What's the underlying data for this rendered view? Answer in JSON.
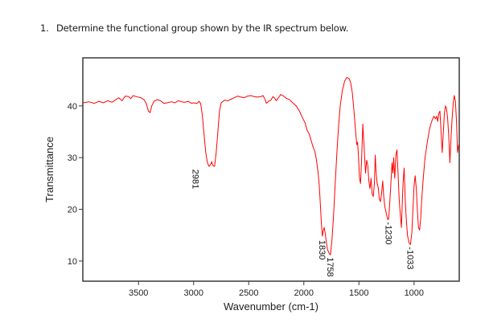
{
  "question": {
    "number": "1.",
    "text": "Determine the functional group shown by the IR spectrum below."
  },
  "chart_data": {
    "type": "line",
    "title": "",
    "xlabel": "Wavenumber (cm-1)",
    "ylabel": "Transmittance",
    "xlim": [
      4005,
      590
    ],
    "ylim": [
      6.1,
      49.3
    ],
    "x_reversed": true,
    "grid": false,
    "legend": null,
    "x_ticks": [
      3500,
      3000,
      2500,
      2000,
      1500,
      1000
    ],
    "y_ticks": [
      10,
      20,
      30,
      40
    ],
    "line_color": "#ff0000",
    "peak_labels": [
      {
        "label": "2981",
        "x": 2981,
        "y": 28.2
      },
      {
        "label": "1830",
        "x": 1830,
        "y": 14.5
      },
      {
        "label": "1758",
        "x": 1758,
        "y": 11.2
      },
      {
        "label": "-1230",
        "x": 1230,
        "y": 18.0
      },
      {
        "label": "-1033",
        "x": 1033,
        "y": 13.2
      }
    ],
    "series": [
      {
        "name": "IR spectrum",
        "points": [
          [
            4005,
            40.6
          ],
          [
            3950,
            40.8
          ],
          [
            3900,
            40.5
          ],
          [
            3860,
            40.9
          ],
          [
            3820,
            40.6
          ],
          [
            3780,
            41.0
          ],
          [
            3740,
            40.7
          ],
          [
            3700,
            41.3
          ],
          [
            3680,
            41.6
          ],
          [
            3650,
            41.0
          ],
          [
            3620,
            41.9
          ],
          [
            3590,
            41.8
          ],
          [
            3570,
            41.4
          ],
          [
            3550,
            42.0
          ],
          [
            3520,
            41.8
          ],
          [
            3480,
            41.6
          ],
          [
            3450,
            41.2
          ],
          [
            3430,
            40.5
          ],
          [
            3410,
            39.0
          ],
          [
            3395,
            38.7
          ],
          [
            3380,
            40.0
          ],
          [
            3360,
            40.9
          ],
          [
            3330,
            41.2
          ],
          [
            3300,
            41.0
          ],
          [
            3270,
            40.5
          ],
          [
            3240,
            40.6
          ],
          [
            3200,
            40.8
          ],
          [
            3170,
            40.6
          ],
          [
            3140,
            41.0
          ],
          [
            3110,
            40.8
          ],
          [
            3080,
            40.7
          ],
          [
            3050,
            40.9
          ],
          [
            3020,
            40.5
          ],
          [
            3000,
            40.6
          ],
          [
            2970,
            40.5
          ],
          [
            2950,
            40.9
          ],
          [
            2935,
            40.4
          ],
          [
            2920,
            38.0
          ],
          [
            2905,
            34.5
          ],
          [
            2890,
            31.0
          ],
          [
            2875,
            29.0
          ],
          [
            2860,
            28.3
          ],
          [
            2845,
            28.7
          ],
          [
            2835,
            29.2
          ],
          [
            2825,
            28.5
          ],
          [
            2810,
            28.3
          ],
          [
            2795,
            31.0
          ],
          [
            2780,
            35.0
          ],
          [
            2765,
            39.0
          ],
          [
            2750,
            40.6
          ],
          [
            2720,
            41.1
          ],
          [
            2690,
            41.0
          ],
          [
            2660,
            41.3
          ],
          [
            2630,
            41.6
          ],
          [
            2600,
            41.9
          ],
          [
            2570,
            41.7
          ],
          [
            2540,
            41.6
          ],
          [
            2510,
            41.9
          ],
          [
            2480,
            42.0
          ],
          [
            2450,
            41.8
          ],
          [
            2420,
            41.7
          ],
          [
            2390,
            41.8
          ],
          [
            2370,
            42.0
          ],
          [
            2355,
            41.4
          ],
          [
            2340,
            40.5
          ],
          [
            2320,
            40.9
          ],
          [
            2300,
            41.1
          ],
          [
            2280,
            41.8
          ],
          [
            2265,
            41.5
          ],
          [
            2250,
            41.0
          ],
          [
            2230,
            41.6
          ],
          [
            2210,
            42.2
          ],
          [
            2190,
            42.0
          ],
          [
            2160,
            41.5
          ],
          [
            2130,
            41.2
          ],
          [
            2100,
            40.6
          ],
          [
            2070,
            40.0
          ],
          [
            2040,
            39.0
          ],
          [
            2010,
            37.6
          ],
          [
            1990,
            36.8
          ],
          [
            1970,
            35.3
          ],
          [
            1950,
            34.5
          ],
          [
            1930,
            33.0
          ],
          [
            1915,
            32.0
          ],
          [
            1900,
            31.2
          ],
          [
            1885,
            29.5
          ],
          [
            1870,
            27.0
          ],
          [
            1860,
            24.5
          ],
          [
            1850,
            21.0
          ],
          [
            1840,
            17.0
          ],
          [
            1832,
            14.8
          ],
          [
            1825,
            15.8
          ],
          [
            1815,
            16.5
          ],
          [
            1805,
            15.2
          ],
          [
            1795,
            13.5
          ],
          [
            1785,
            12.2
          ],
          [
            1770,
            11.5
          ],
          [
            1758,
            11.2
          ],
          [
            1745,
            14.0
          ],
          [
            1730,
            19.0
          ],
          [
            1715,
            25.0
          ],
          [
            1700,
            31.0
          ],
          [
            1685,
            36.0
          ],
          [
            1670,
            40.0
          ],
          [
            1650,
            43.0
          ],
          [
            1630,
            44.8
          ],
          [
            1610,
            45.5
          ],
          [
            1590,
            45.3
          ],
          [
            1575,
            44.5
          ],
          [
            1560,
            42.5
          ],
          [
            1545,
            39.0
          ],
          [
            1530,
            35.0
          ],
          [
            1520,
            32.5
          ],
          [
            1512,
            33.0
          ],
          [
            1505,
            30.5
          ],
          [
            1495,
            26.0
          ],
          [
            1485,
            25.0
          ],
          [
            1475,
            30.0
          ],
          [
            1465,
            36.5
          ],
          [
            1458,
            34.0
          ],
          [
            1450,
            31.0
          ],
          [
            1440,
            27.0
          ],
          [
            1430,
            29.5
          ],
          [
            1420,
            28.5
          ],
          [
            1410,
            25.5
          ],
          [
            1400,
            24.0
          ],
          [
            1390,
            26.0
          ],
          [
            1380,
            23.0
          ],
          [
            1370,
            22.5
          ],
          [
            1360,
            25.0
          ],
          [
            1352,
            30.5
          ],
          [
            1345,
            27.5
          ],
          [
            1335,
            25.0
          ],
          [
            1325,
            24.2
          ],
          [
            1315,
            22.0
          ],
          [
            1305,
            21.5
          ],
          [
            1295,
            23.0
          ],
          [
            1285,
            25.5
          ],
          [
            1275,
            22.5
          ],
          [
            1265,
            20.5
          ],
          [
            1250,
            19.0
          ],
          [
            1238,
            18.0
          ],
          [
            1230,
            18.2
          ],
          [
            1220,
            21.5
          ],
          [
            1210,
            25.0
          ],
          [
            1200,
            29.0
          ],
          [
            1192,
            27.0
          ],
          [
            1185,
            30.0
          ],
          [
            1175,
            26.0
          ],
          [
            1165,
            30.5
          ],
          [
            1155,
            31.5
          ],
          [
            1145,
            27.0
          ],
          [
            1135,
            22.0
          ],
          [
            1125,
            19.0
          ],
          [
            1115,
            16.5
          ],
          [
            1108,
            20.5
          ],
          [
            1100,
            25.0
          ],
          [
            1090,
            28.0
          ],
          [
            1080,
            22.0
          ],
          [
            1070,
            18.0
          ],
          [
            1060,
            15.0
          ],
          [
            1045,
            13.5
          ],
          [
            1033,
            13.2
          ],
          [
            1020,
            15.5
          ],
          [
            1010,
            20.0
          ],
          [
            1000,
            24.5
          ],
          [
            990,
            26.5
          ],
          [
            980,
            24.0
          ],
          [
            970,
            20.0
          ],
          [
            960,
            16.5
          ],
          [
            950,
            16.0
          ],
          [
            940,
            18.0
          ],
          [
            930,
            22.0
          ],
          [
            915,
            26.5
          ],
          [
            900,
            30.0
          ],
          [
            880,
            33.0
          ],
          [
            860,
            35.5
          ],
          [
            840,
            37.0
          ],
          [
            820,
            38.0
          ],
          [
            805,
            37.5
          ],
          [
            795,
            38.0
          ],
          [
            785,
            37.0
          ],
          [
            775,
            38.5
          ],
          [
            765,
            39.0
          ],
          [
            755,
            35.0
          ],
          [
            745,
            31.0
          ],
          [
            735,
            34.5
          ],
          [
            725,
            38.5
          ],
          [
            715,
            40.0
          ],
          [
            705,
            39.5
          ],
          [
            695,
            37.5
          ],
          [
            685,
            34.0
          ],
          [
            675,
            29.0
          ],
          [
            665,
            33.5
          ],
          [
            655,
            37.5
          ],
          [
            645,
            40.5
          ],
          [
            635,
            42.0
          ],
          [
            625,
            41.0
          ],
          [
            615,
            37.0
          ],
          [
            605,
            31.0
          ],
          [
            595,
            32.5
          ]
        ]
      }
    ]
  }
}
